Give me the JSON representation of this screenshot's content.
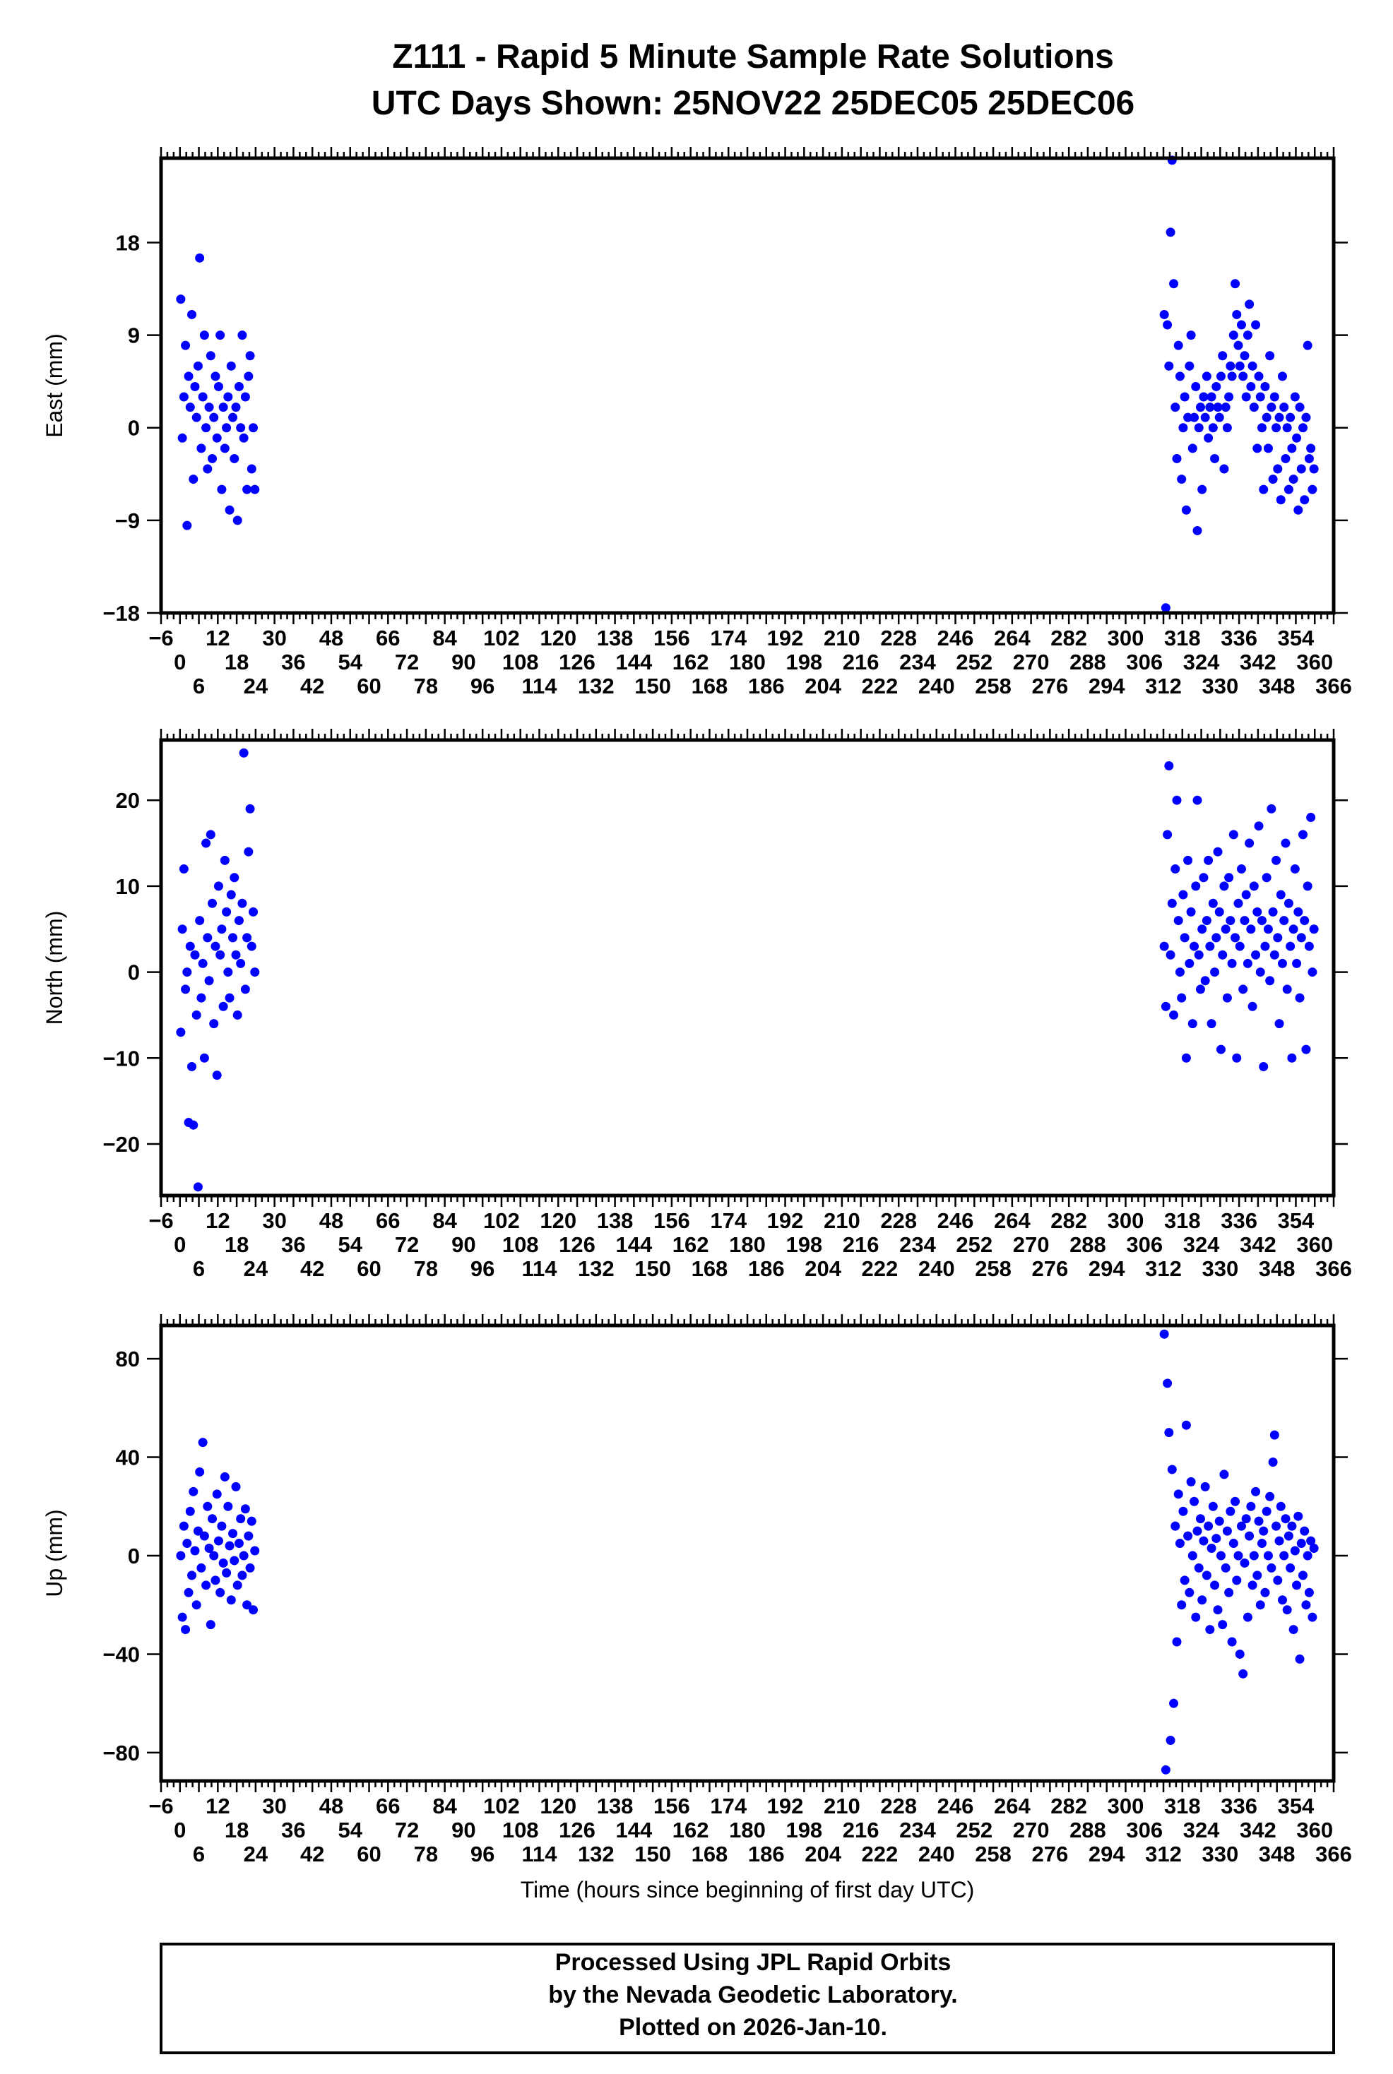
{
  "chart_data": [
    {
      "type": "scatter",
      "title": "Z111 - Rapid 5 Minute Sample Rate Solutions",
      "subtitle": "UTC Days Shown:  25NOV22 25DEC05 25DEC06",
      "ylabel": "East (mm)",
      "xlabel": "",
      "xlim": [
        -6,
        366
      ],
      "ylim": [
        -18,
        26.2
      ],
      "yticks": [
        -18,
        -9,
        0,
        9,
        18
      ],
      "ytick_labels": [
        "−18",
        "−9",
        "0",
        "9",
        "18"
      ],
      "color": "#0000ff",
      "segments": [
        {
          "x_range": [
            0.25,
            23.75
          ],
          "values": [
            12.5,
            -1,
            3,
            8,
            -9.5,
            5,
            2,
            11,
            -5,
            4,
            1,
            6,
            16.5,
            -2,
            3,
            9,
            0,
            -4,
            2,
            7,
            -3,
            1,
            5,
            -1,
            4,
            9,
            -6,
            2,
            -2,
            0,
            3,
            -8,
            6,
            1,
            -3,
            2,
            -9,
            4,
            0,
            9,
            -1,
            3,
            -6,
            5,
            7,
            -4,
            0,
            -6
          ]
        },
        {
          "x_range": [
            312.25,
            359.75
          ],
          "values": [
            11,
            -17.5,
            10,
            6,
            19,
            26,
            14,
            2,
            -3,
            8,
            5,
            -5,
            0,
            3,
            -8,
            1,
            6,
            9,
            -2,
            1,
            4,
            -10,
            0,
            2,
            -6,
            3,
            1,
            5,
            -1,
            2,
            3,
            0,
            -3,
            4,
            2,
            1,
            5,
            7,
            -4,
            2,
            0,
            3,
            6,
            5,
            9,
            14,
            11,
            8,
            6,
            10,
            5,
            7,
            3,
            9,
            12,
            4,
            6,
            2,
            10,
            -2,
            5,
            3,
            0,
            -6,
            4,
            1,
            -2,
            7,
            2,
            -5,
            3,
            0,
            -4,
            1,
            -7,
            5,
            2,
            -3,
            0,
            -6,
            1,
            -2,
            -5,
            3,
            -1,
            -8,
            2,
            -4,
            0,
            -7,
            1,
            8,
            -3,
            -2,
            -6,
            -4
          ]
        }
      ]
    },
    {
      "type": "scatter",
      "ylabel": "North (mm)",
      "xlabel": "",
      "xlim": [
        -6,
        366
      ],
      "ylim": [
        -26,
        27
      ],
      "yticks": [
        -20,
        -10,
        0,
        10,
        20
      ],
      "ytick_labels": [
        "−20",
        "−10",
        "0",
        "10",
        "20"
      ],
      "color": "#0000ff",
      "segments": [
        {
          "x_range": [
            0.25,
            23.75
          ],
          "values": [
            -7,
            5,
            12,
            -2,
            0,
            -17.5,
            3,
            -11,
            -17.8,
            2,
            -5,
            -25,
            6,
            -3,
            1,
            -10,
            15,
            4,
            -1,
            16,
            8,
            -6,
            3,
            -12,
            10,
            2,
            5,
            -4,
            13,
            7,
            0,
            -3,
            9,
            4,
            11,
            2,
            -5,
            6,
            1,
            8,
            25.5,
            -2,
            4,
            14,
            19,
            3,
            7,
            0
          ]
        },
        {
          "x_range": [
            312.25,
            359.75
          ],
          "values": [
            3,
            -4,
            16,
            24,
            2,
            8,
            -5,
            12,
            20,
            6,
            0,
            -3,
            9,
            4,
            -10,
            13,
            1,
            7,
            -6,
            3,
            10,
            20,
            2,
            -2,
            5,
            11,
            -1,
            6,
            13,
            3,
            -6,
            8,
            0,
            4,
            14,
            7,
            -9,
            2,
            10,
            5,
            -3,
            11,
            6,
            1,
            16,
            4,
            -10,
            8,
            3,
            12,
            -2,
            6,
            9,
            1,
            15,
            5,
            -4,
            10,
            2,
            7,
            17,
            0,
            6,
            -11,
            3,
            11,
            5,
            -1,
            19,
            7,
            2,
            13,
            4,
            -6,
            9,
            1,
            6,
            15,
            -2,
            8,
            3,
            -10,
            5,
            12,
            1,
            7,
            -3,
            4,
            16,
            6,
            -9,
            10,
            3,
            18,
            0,
            5
          ]
        }
      ]
    },
    {
      "type": "scatter",
      "ylabel": "Up (mm)",
      "xlabel": "Time (hours since beginning of first day UTC)",
      "xlim": [
        -6,
        366
      ],
      "ylim": [
        -91.5,
        93.5
      ],
      "yticks": [
        -80,
        -40,
        0,
        40,
        80
      ],
      "ytick_labels": [
        "−80",
        "−40",
        "0",
        "40",
        "80"
      ],
      "color": "#0000ff",
      "segments": [
        {
          "x_range": [
            0.25,
            23.75
          ],
          "values": [
            0,
            -25,
            12,
            -30,
            5,
            -15,
            18,
            -8,
            26,
            2,
            -20,
            10,
            34,
            -5,
            46,
            8,
            -12,
            20,
            3,
            -28,
            15,
            0,
            -10,
            25,
            6,
            -15,
            12,
            -3,
            32,
            -7,
            20,
            4,
            -18,
            9,
            -2,
            28,
            -12,
            5,
            15,
            -8,
            0,
            19,
            -20,
            8,
            -5,
            14,
            -22,
            2
          ]
        },
        {
          "x_range": [
            312.25,
            359.75
          ],
          "values": [
            90,
            -87,
            70,
            50,
            -75,
            35,
            -60,
            12,
            -35,
            25,
            5,
            -20,
            18,
            -10,
            53,
            8,
            -15,
            30,
            0,
            22,
            -25,
            10,
            -5,
            15,
            -18,
            6,
            28,
            -8,
            12,
            -30,
            3,
            20,
            -12,
            7,
            -22,
            14,
            0,
            -28,
            33,
            -5,
            10,
            -15,
            18,
            -35,
            5,
            22,
            -10,
            0,
            -40,
            12,
            -48,
            -3,
            15,
            -25,
            8,
            20,
            -12,
            0,
            26,
            -8,
            14,
            -20,
            5,
            10,
            -15,
            18,
            0,
            24,
            -5,
            38,
            49,
            12,
            -10,
            6,
            20,
            -18,
            0,
            15,
            -22,
            8,
            -5,
            12,
            -30,
            2,
            -12,
            16,
            -42,
            5,
            -8,
            10,
            -20,
            0,
            -15,
            6,
            -25,
            3
          ]
        }
      ]
    }
  ],
  "x_ticks": [
    -6,
    0,
    6,
    12,
    18,
    24,
    30,
    36,
    42,
    48,
    54,
    60,
    66,
    72,
    78,
    84,
    90,
    96,
    102,
    108,
    114,
    120,
    126,
    132,
    138,
    144,
    150,
    156,
    162,
    168,
    174,
    180,
    186,
    192,
    198,
    204,
    210,
    216,
    222,
    228,
    234,
    240,
    246,
    252,
    258,
    264,
    270,
    276,
    282,
    288,
    294,
    300,
    306,
    312,
    318,
    324,
    330,
    336,
    342,
    348,
    354,
    360,
    366
  ],
  "x_tick_labels": [
    "−6",
    "0",
    "6",
    "12",
    "18",
    "24",
    "30",
    "36",
    "42",
    "48",
    "54",
    "60",
    "66",
    "72",
    "78",
    "84",
    "90",
    "96",
    "102",
    "108",
    "114",
    "120",
    "126",
    "132",
    "138",
    "144",
    "150",
    "156",
    "162",
    "168",
    "174",
    "180",
    "186",
    "192",
    "198",
    "204",
    "210",
    "216",
    "222",
    "228",
    "234",
    "240",
    "246",
    "252",
    "258",
    "264",
    "270",
    "276",
    "282",
    "288",
    "294",
    "300",
    "306",
    "312",
    "318",
    "324",
    "330",
    "336",
    "342",
    "348",
    "354",
    "360",
    "366"
  ],
  "footer": {
    "line1": "Processed Using JPL Rapid Orbits",
    "line2": "by the Nevada Geodetic Laboratory.",
    "line3": "Plotted on 2026-Jan-10."
  }
}
